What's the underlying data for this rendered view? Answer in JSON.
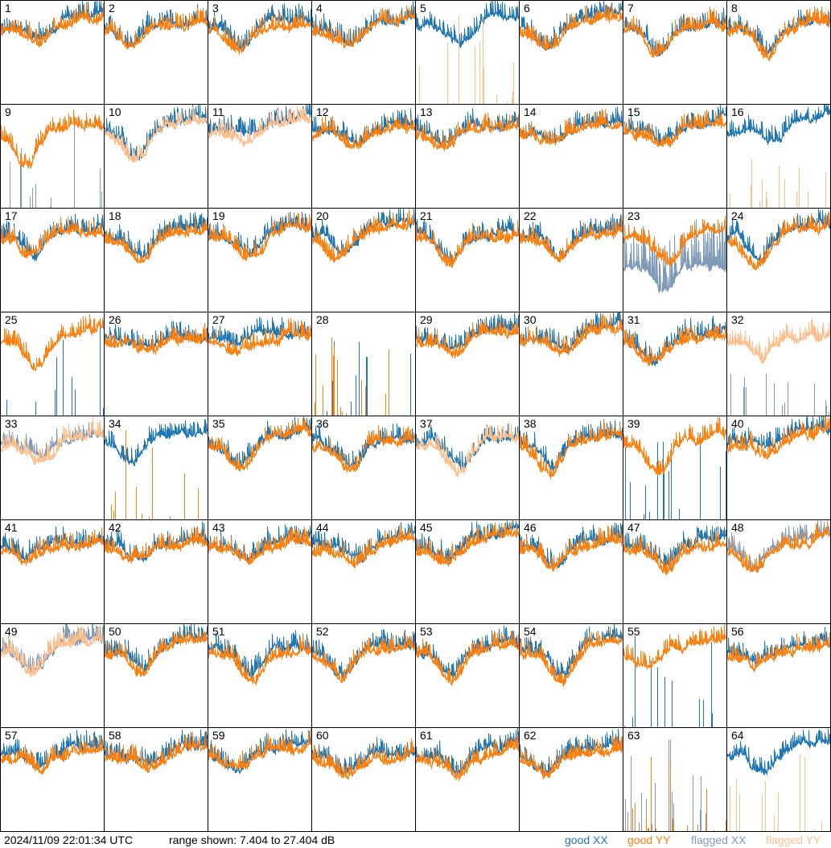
{
  "colors": {
    "good_xx": "#1f77b4",
    "good_yy": "#ff7f0e",
    "flagged_xx": "#7f9bb8",
    "flagged_yy": "#ffbf8c"
  },
  "footer": {
    "timestamp": "2024/11/09 22:01:34 UTC",
    "range": "range shown: 7.404 to 27.404 dB",
    "legend": {
      "good_xx": "good XX",
      "good_yy": "good YY",
      "flagged_xx": "flagged XX",
      "flagged_yy": "flagged YY"
    }
  },
  "chart_data": {
    "type": "line",
    "title": "",
    "xlabel": "",
    "ylabel": "dB",
    "ylim": [
      7.404,
      27.404
    ],
    "layout": "8x8 grid of per-antenna spectra",
    "series_names": [
      "good XX",
      "good YY",
      "flagged XX",
      "flagged YY"
    ],
    "panels_default": {
      "xx": {
        "status": "good",
        "mode": "line"
      },
      "yy": {
        "status": "good",
        "mode": "line"
      }
    },
    "panels_override": {
      "5": {
        "yy": {
          "status": "flagged",
          "mode": "spikes"
        }
      },
      "9": {
        "xx": {
          "status": "flagged",
          "mode": "spikes"
        }
      },
      "10": {
        "yy": {
          "status": "flagged",
          "mode": "line"
        }
      },
      "11": {
        "yy": {
          "status": "flagged",
          "mode": "line"
        }
      },
      "16": {
        "yy": {
          "status": "flagged",
          "mode": "spikes"
        }
      },
      "23": {
        "xx": {
          "status": "flagged",
          "mode": "noisy"
        }
      },
      "25": {
        "xx": {
          "status": "good",
          "mode": "spikes"
        }
      },
      "28": {
        "xx": {
          "status": "good",
          "mode": "spikes"
        },
        "yy": {
          "status": "good",
          "mode": "spikes"
        }
      },
      "32": {
        "xx": {
          "status": "flagged",
          "mode": "spikes"
        },
        "yy": {
          "status": "flagged",
          "mode": "line"
        }
      },
      "33": {
        "xx": {
          "status": "flagged",
          "mode": "line"
        },
        "yy": {
          "status": "flagged",
          "mode": "line"
        }
      },
      "34": {
        "yy": {
          "status": "good",
          "mode": "spikes"
        }
      },
      "37": {
        "yy": {
          "status": "flagged",
          "mode": "line"
        }
      },
      "39": {
        "xx": {
          "status": "good",
          "mode": "spikes"
        }
      },
      "48": {
        "xx": {
          "status": "flagged",
          "mode": "line"
        }
      },
      "49": {
        "xx": {
          "status": "flagged",
          "mode": "line"
        },
        "yy": {
          "status": "flagged",
          "mode": "line"
        }
      },
      "55": {
        "xx": {
          "status": "good",
          "mode": "spikes"
        }
      },
      "63": {
        "xx": {
          "status": "flagged",
          "mode": "spikes"
        },
        "yy": {
          "status": "good",
          "mode": "spikes"
        }
      },
      "64": {
        "yy": {
          "status": "flagged",
          "mode": "spikes"
        }
      }
    },
    "panel_labels": [
      "1",
      "2",
      "3",
      "4",
      "5",
      "6",
      "7",
      "8",
      "9",
      "10",
      "11",
      "12",
      "13",
      "14",
      "15",
      "16",
      "17",
      "18",
      "19",
      "20",
      "21",
      "22",
      "23",
      "24",
      "25",
      "26",
      "27",
      "28",
      "29",
      "30",
      "31",
      "32",
      "33",
      "34",
      "35",
      "36",
      "37",
      "38",
      "39",
      "40",
      "41",
      "42",
      "43",
      "44",
      "45",
      "46",
      "47",
      "48",
      "49",
      "50",
      "51",
      "52",
      "53",
      "54",
      "55",
      "56",
      "57",
      "58",
      "59",
      "60",
      "61",
      "62",
      "63",
      "64"
    ]
  }
}
